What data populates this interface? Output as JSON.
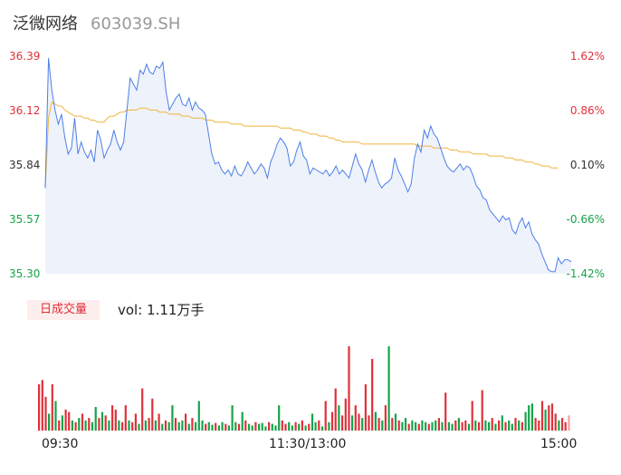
{
  "header": {
    "name": "泛微网络",
    "code": "603039.SH"
  },
  "colors": {
    "up": "#e0303a",
    "down": "#16a34a",
    "flat": "#333333",
    "price_line": "#4d7fe8",
    "avg_line": "#f0b43c",
    "area_fill": "#eef2fb"
  },
  "y_labels": [
    "36.39",
    "36.12",
    "35.84",
    "35.57",
    "35.30"
  ],
  "pct_labels": [
    "1.62%",
    "0.86%",
    "0.10%",
    "-0.66%",
    "-1.42%"
  ],
  "volume": {
    "tag": "日成交量",
    "text": "vol: 1.11万手"
  },
  "time_labels": [
    "09:30",
    "11:30/13:00",
    "15:00"
  ],
  "chart_data": {
    "type": "line",
    "x_ticks": [
      "09:30",
      "11:30/13:00",
      "15:00"
    ],
    "ylim": [
      35.3,
      36.39
    ],
    "pct_ylim": [
      -1.42,
      1.62
    ],
    "price": [
      35.73,
      36.38,
      36.22,
      36.12,
      36.05,
      36.1,
      35.98,
      35.9,
      35.93,
      36.08,
      35.9,
      35.96,
      35.91,
      35.88,
      35.92,
      35.86,
      36.02,
      35.97,
      35.88,
      35.92,
      35.95,
      36.02,
      35.96,
      35.92,
      35.96,
      36.12,
      36.28,
      36.25,
      36.22,
      36.32,
      36.3,
      36.35,
      36.31,
      36.3,
      36.34,
      36.33,
      36.36,
      36.21,
      36.12,
      36.15,
      36.18,
      36.2,
      36.15,
      36.14,
      36.18,
      36.12,
      36.16,
      36.13,
      36.12,
      36.1,
      36.0,
      35.9,
      35.85,
      35.86,
      35.82,
      35.8,
      35.82,
      35.79,
      35.84,
      35.8,
      35.79,
      35.82,
      35.86,
      35.83,
      35.8,
      35.82,
      35.85,
      35.83,
      35.78,
      35.86,
      35.9,
      35.95,
      35.98,
      35.96,
      35.93,
      35.84,
      35.86,
      35.92,
      35.96,
      35.89,
      35.87,
      35.8,
      35.83,
      35.82,
      35.81,
      35.8,
      35.82,
      35.79,
      35.81,
      35.84,
      35.8,
      35.82,
      35.8,
      35.78,
      35.84,
      35.9,
      35.85,
      35.82,
      35.76,
      35.82,
      35.87,
      35.81,
      35.76,
      35.73,
      35.75,
      35.76,
      35.78,
      35.88,
      35.82,
      35.79,
      35.75,
      35.71,
      35.75,
      35.88,
      35.95,
      35.91,
      36.02,
      35.98,
      36.04,
      36.0,
      35.98,
      35.93,
      35.88,
      35.84,
      35.82,
      35.81,
      35.83,
      35.85,
      35.82,
      35.84,
      35.83,
      35.79,
      35.74,
      35.72,
      35.68,
      35.67,
      35.62,
      35.6,
      35.58,
      35.56,
      35.59,
      35.57,
      35.58,
      35.52,
      35.5,
      35.55,
      35.58,
      35.53,
      35.56,
      35.5,
      35.47,
      35.45,
      35.4,
      35.36,
      35.32,
      35.31,
      35.31,
      35.38,
      35.35,
      35.37,
      35.37,
      35.36
    ],
    "avg_price": [
      35.73,
      36.08,
      36.16,
      36.15,
      36.14,
      36.14,
      36.12,
      36.11,
      36.1,
      36.09,
      36.09,
      36.09,
      36.08,
      36.08,
      36.07,
      36.07,
      36.06,
      36.06,
      36.06,
      36.08,
      36.09,
      36.09,
      36.1,
      36.11,
      36.11,
      36.12,
      36.12,
      36.12,
      36.12,
      36.13,
      36.13,
      36.13,
      36.12,
      36.12,
      36.12,
      36.11,
      36.11,
      36.11,
      36.1,
      36.1,
      36.1,
      36.1,
      36.09,
      36.09,
      36.09,
      36.08,
      36.08,
      36.08,
      36.08,
      36.07,
      36.07,
      36.07,
      36.06,
      36.06,
      36.06,
      36.06,
      36.06,
      36.05,
      36.05,
      36.05,
      36.05,
      36.04,
      36.04,
      36.04,
      36.04,
      36.04,
      36.04,
      36.04,
      36.04,
      36.04,
      36.04,
      36.04,
      36.03,
      36.03,
      36.03,
      36.03,
      36.02,
      36.02,
      36.02,
      36.01,
      36.01,
      36.0,
      36.0,
      36.0,
      35.99,
      35.99,
      35.99,
      35.98,
      35.98,
      35.97,
      35.97,
      35.96,
      35.96,
      35.96,
      35.96,
      35.96,
      35.96,
      35.95,
      35.95,
      35.95,
      35.95,
      35.95,
      35.95,
      35.95,
      35.95,
      35.95,
      35.95,
      35.95,
      35.95,
      35.95,
      35.95,
      35.95,
      35.95,
      35.95,
      35.94,
      35.94,
      35.94,
      35.94,
      35.94,
      35.93,
      35.93,
      35.93,
      35.93,
      35.93,
      35.92,
      35.92,
      35.92,
      35.91,
      35.91,
      35.91,
      35.91,
      35.9,
      35.9,
      35.9,
      35.9,
      35.9,
      35.89,
      35.89,
      35.89,
      35.89,
      35.89,
      35.88,
      35.88,
      35.88,
      35.87,
      35.87,
      35.87,
      35.86,
      35.86,
      35.86,
      35.85,
      35.85,
      35.84,
      35.84,
      35.84,
      35.83,
      35.83,
      35.83
    ],
    "volume": [
      0.55,
      0.6,
      0.4,
      0.2,
      0.55,
      0.35,
      0.12,
      0.18,
      0.25,
      0.22,
      0.12,
      0.1,
      0.15,
      0.2,
      0.12,
      0.15,
      0.1,
      0.28,
      0.15,
      0.22,
      0.18,
      0.12,
      0.3,
      0.25,
      0.12,
      0.1,
      0.3,
      0.12,
      0.1,
      0.2,
      0.08,
      0.5,
      0.12,
      0.15,
      0.38,
      0.12,
      0.2,
      0.08,
      0.12,
      0.1,
      0.3,
      0.15,
      0.1,
      0.12,
      0.2,
      0.08,
      0.15,
      0.1,
      0.35,
      0.12,
      0.08,
      0.1,
      0.07,
      0.09,
      0.06,
      0.1,
      0.08,
      0.06,
      0.3,
      0.1,
      0.08,
      0.22,
      0.12,
      0.08,
      0.06,
      0.1,
      0.08,
      0.09,
      0.05,
      0.1,
      0.08,
      0.06,
      0.3,
      0.12,
      0.08,
      0.1,
      0.06,
      0.1,
      0.08,
      0.12,
      0.06,
      0.08,
      0.2,
      0.1,
      0.12,
      0.05,
      0.35,
      0.1,
      0.22,
      0.5,
      0.3,
      0.18,
      0.38,
      1.0,
      0.18,
      0.3,
      0.2,
      0.15,
      0.55,
      0.18,
      0.85,
      0.22,
      0.15,
      0.12,
      0.3,
      1.0,
      0.15,
      0.2,
      0.12,
      0.1,
      0.15,
      0.08,
      0.12,
      0.1,
      0.08,
      0.12,
      0.1,
      0.08,
      0.1,
      0.12,
      0.15,
      0.1,
      0.45,
      0.1,
      0.08,
      0.12,
      0.15,
      0.1,
      0.12,
      0.08,
      0.35,
      0.12,
      0.1,
      0.48,
      0.12,
      0.1,
      0.15,
      0.08,
      0.12,
      0.18,
      0.1,
      0.12,
      0.08,
      0.15,
      0.12,
      0.1,
      0.22,
      0.3,
      0.32,
      0.15,
      0.12,
      0.35,
      0.25,
      0.3,
      0.32,
      0.2,
      0.12,
      0.15,
      0.1,
      0.18
    ],
    "volume_dir": [
      1,
      1,
      1,
      -1,
      1,
      -1,
      1,
      -1,
      1,
      1,
      -1,
      1,
      -1,
      1,
      -1,
      1,
      -1,
      -1,
      1,
      -1,
      1,
      -1,
      1,
      1,
      -1,
      1,
      1,
      -1,
      1,
      1,
      -1,
      1,
      -1,
      1,
      1,
      -1,
      1,
      -1,
      1,
      -1,
      -1,
      1,
      -1,
      -1,
      1,
      -1,
      1,
      -1,
      -1,
      -1,
      1,
      -1,
      -1,
      1,
      -1,
      -1,
      1,
      -1,
      -1,
      -1,
      1,
      -1,
      1,
      -1,
      -1,
      1,
      -1,
      -1,
      -1,
      1,
      -1,
      -1,
      -1,
      1,
      1,
      -1,
      -1,
      1,
      -1,
      1,
      -1,
      1,
      -1,
      -1,
      1,
      -1,
      1,
      -1,
      1,
      1,
      -1,
      1,
      1,
      1,
      -1,
      1,
      1,
      -1,
      1,
      1,
      1,
      -1,
      1,
      -1,
      1,
      -1,
      1,
      -1,
      1,
      -1,
      -1,
      1,
      -1,
      -1,
      1,
      -1,
      -1,
      1,
      -1,
      -1,
      1,
      -1,
      1,
      -1,
      -1,
      1,
      -1,
      1,
      1,
      -1,
      1,
      -1,
      1,
      1,
      -1,
      -1,
      1,
      -1,
      1,
      -1,
      1,
      -1,
      -1,
      1,
      -1,
      1,
      -1,
      -1,
      -1,
      1,
      1,
      1,
      -1,
      1,
      1,
      1,
      -1,
      1,
      1,
      0
    ]
  }
}
